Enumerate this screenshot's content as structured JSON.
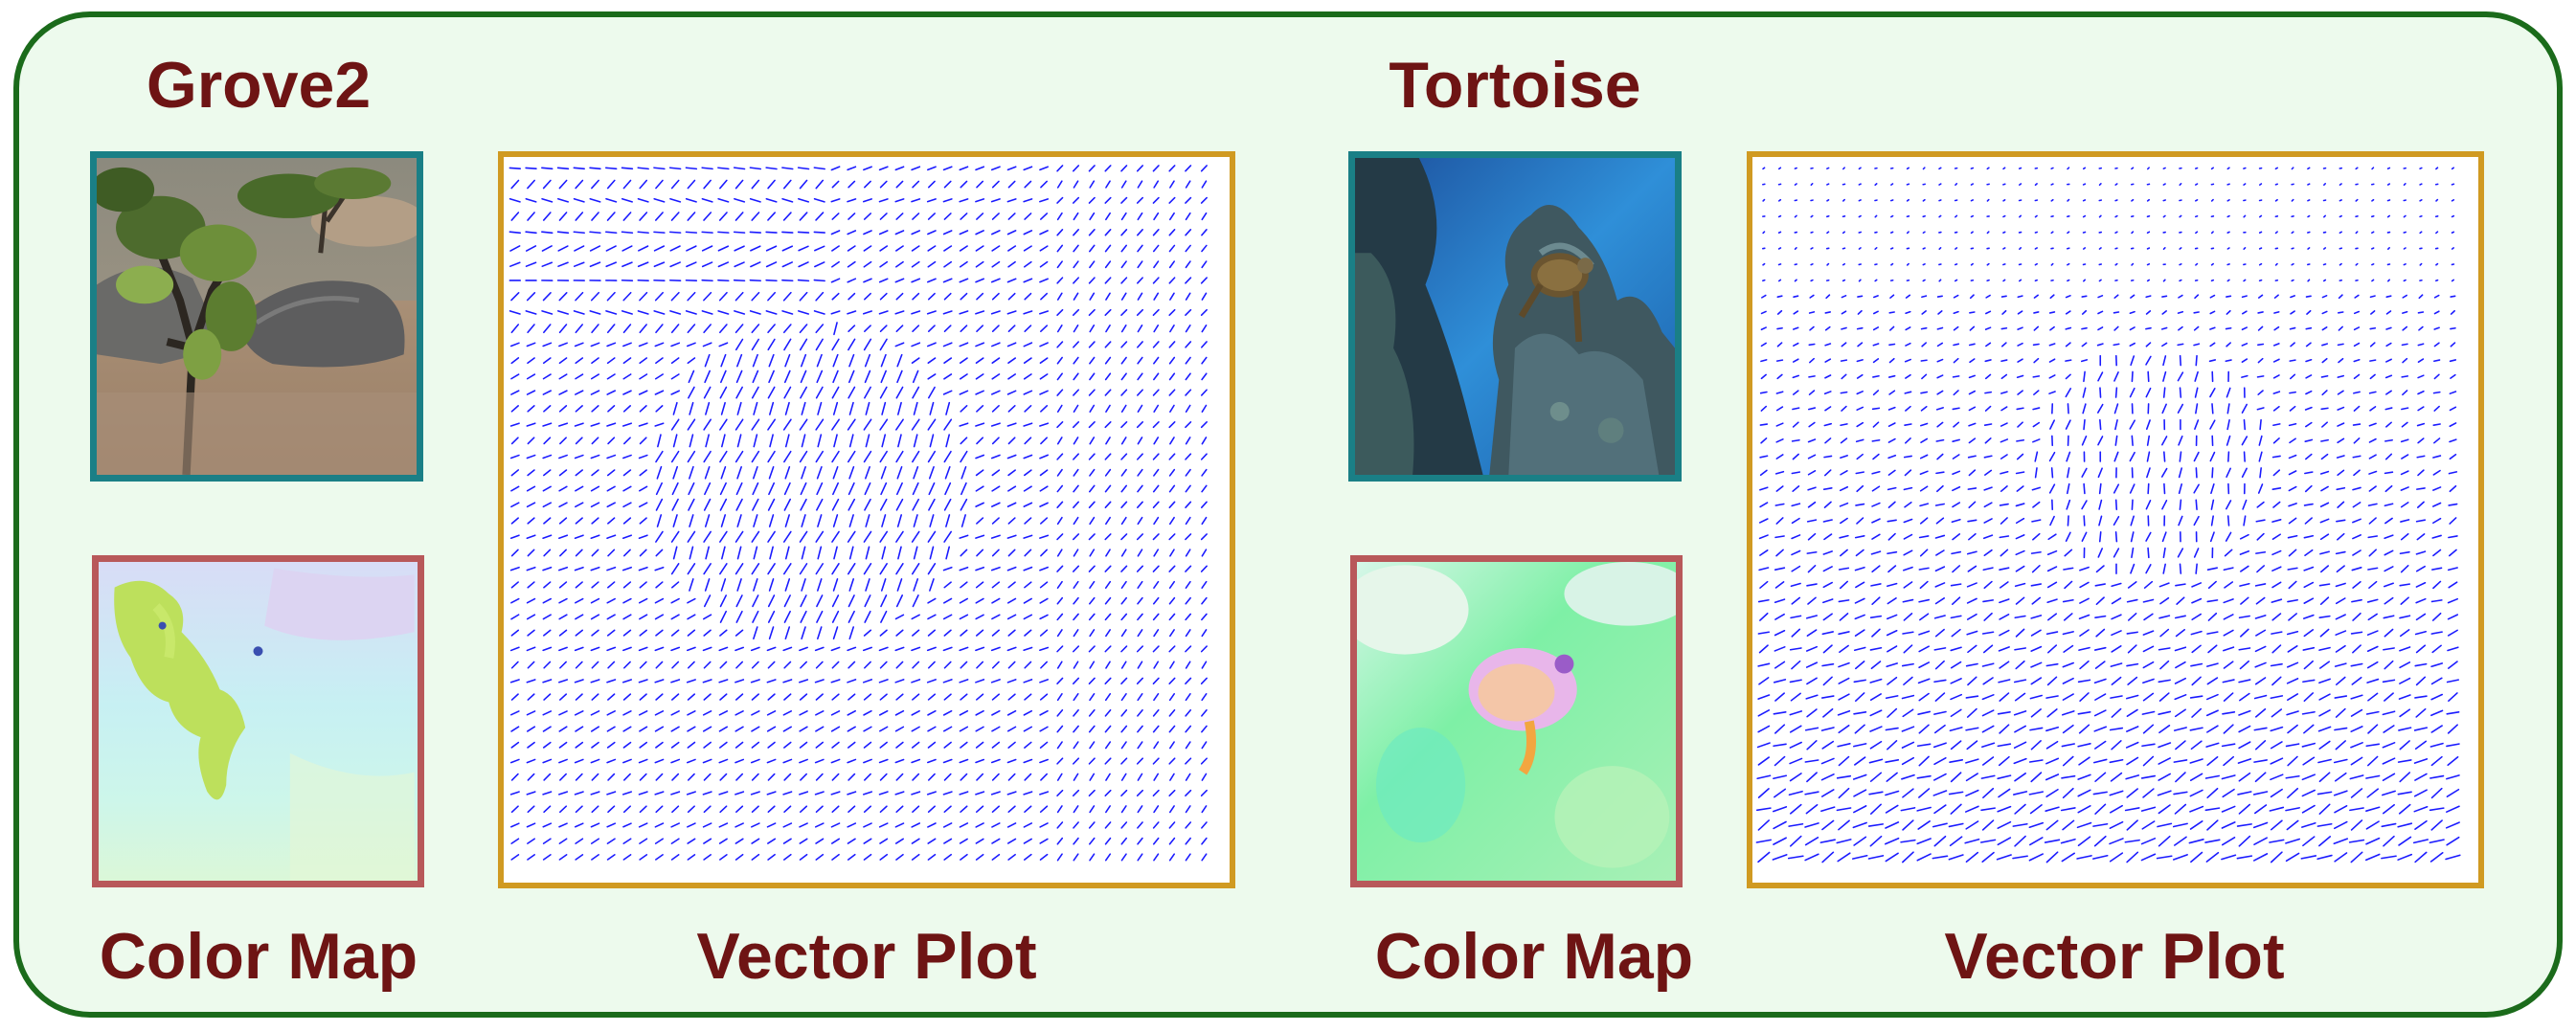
{
  "figure": {
    "scenes": [
      {
        "title": "Grove2",
        "color_map_label": "Color Map",
        "vector_plot_label": "Vector Plot",
        "photo_icon": "forest-rock-scene-photo",
        "color_map_icon": "optical-flow-color-map"
      },
      {
        "title": "Tortoise",
        "color_map_label": "Color Map",
        "vector_plot_label": "Vector Plot",
        "photo_icon": "underwater-turtle-photo",
        "color_map_icon": "optical-flow-color-map"
      }
    ],
    "colors": {
      "panel_border": "#1b6b1b",
      "panel_fill": "#edfaed",
      "label_text": "#6e1414",
      "photo_frame": "#1a7f86",
      "color_map_frame": "#b8585a",
      "vector_frame": "#d09a22",
      "vector_arrow": "#1a1aff"
    }
  }
}
